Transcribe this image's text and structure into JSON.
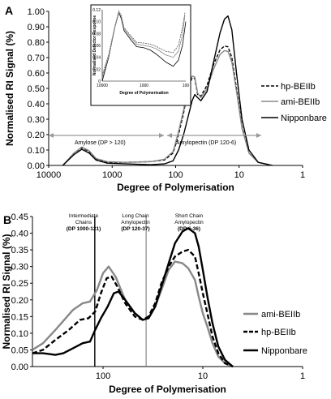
{
  "chart_data": [
    {
      "panel": "A",
      "type": "line",
      "xlabel": "Degree of Polymerisation",
      "ylabel": "Normalised RI Signal (%)",
      "x_scale": "log",
      "x_reversed": true,
      "x_ticks": [
        "10000",
        "1000",
        "100",
        "10",
        "1"
      ],
      "y_ticks": [
        "0.00",
        "0.10",
        "0.20",
        "0.30",
        "0.40",
        "0.50",
        "0.60",
        "0.70",
        "0.80",
        "0.90",
        "1.00"
      ],
      "xlim": [
        10000,
        1
      ],
      "ylim": [
        0,
        1.0
      ],
      "legend_position": "right",
      "series": [
        {
          "name": "hp-BEIIb",
          "color": "#000000",
          "dash": "dashed",
          "points": [
            [
              6000,
              0.0
            ],
            [
              4000,
              0.08
            ],
            [
              3000,
              0.115
            ],
            [
              2300,
              0.09
            ],
            [
              1800,
              0.04
            ],
            [
              1200,
              0.02
            ],
            [
              600,
              0.02
            ],
            [
              250,
              0.025
            ],
            [
              150,
              0.035
            ],
            [
              110,
              0.08
            ],
            [
              90,
              0.2
            ],
            [
              75,
              0.34
            ],
            [
              65,
              0.48
            ],
            [
              55,
              0.57
            ],
            [
              50,
              0.565
            ],
            [
              45,
              0.46
            ],
            [
              40,
              0.45
            ],
            [
              32,
              0.52
            ],
            [
              25,
              0.66
            ],
            [
              20,
              0.75
            ],
            [
              17,
              0.775
            ],
            [
              15,
              0.77
            ],
            [
              13,
              0.7
            ],
            [
              11,
              0.5
            ],
            [
              9,
              0.25
            ],
            [
              7,
              0.08
            ],
            [
              5,
              0.02
            ],
            [
              3,
              0.0
            ]
          ]
        },
        {
          "name": "ami-BEIIb",
          "color": "#888888",
          "dash": "solid",
          "points": [
            [
              6000,
              0.0
            ],
            [
              4000,
              0.08
            ],
            [
              3000,
              0.12
            ],
            [
              2300,
              0.095
            ],
            [
              1800,
              0.045
            ],
            [
              1200,
              0.025
            ],
            [
              600,
              0.02
            ],
            [
              250,
              0.025
            ],
            [
              150,
              0.04
            ],
            [
              110,
              0.09
            ],
            [
              90,
              0.22
            ],
            [
              75,
              0.36
            ],
            [
              65,
              0.5
            ],
            [
              55,
              0.58
            ],
            [
              50,
              0.575
            ],
            [
              45,
              0.47
            ],
            [
              40,
              0.44
            ],
            [
              32,
              0.5
            ],
            [
              25,
              0.63
            ],
            [
              20,
              0.72
            ],
            [
              17,
              0.745
            ],
            [
              15,
              0.74
            ],
            [
              13,
              0.67
            ],
            [
              11,
              0.48
            ],
            [
              9,
              0.24
            ],
            [
              7,
              0.08
            ],
            [
              5,
              0.02
            ],
            [
              3,
              0.0
            ]
          ]
        },
        {
          "name": "Nipponbare",
          "color": "#000000",
          "dash": "solid",
          "points": [
            [
              6000,
              0.0
            ],
            [
              4000,
              0.07
            ],
            [
              3000,
              0.105
            ],
            [
              2300,
              0.08
            ],
            [
              1800,
              0.035
            ],
            [
              1200,
              0.015
            ],
            [
              600,
              0.01
            ],
            [
              250,
              0.005
            ],
            [
              150,
              0.01
            ],
            [
              110,
              0.03
            ],
            [
              90,
              0.1
            ],
            [
              75,
              0.2
            ],
            [
              65,
              0.3
            ],
            [
              55,
              0.42
            ],
            [
              50,
              0.46
            ],
            [
              45,
              0.44
            ],
            [
              40,
              0.42
            ],
            [
              32,
              0.48
            ],
            [
              25,
              0.68
            ],
            [
              20,
              0.86
            ],
            [
              17,
              0.95
            ],
            [
              15,
              0.97
            ],
            [
              13,
              0.88
            ],
            [
              11,
              0.6
            ],
            [
              9,
              0.3
            ],
            [
              7,
              0.1
            ],
            [
              5,
              0.02
            ],
            [
              3,
              0.0
            ]
          ]
        }
      ],
      "annotations": [
        "Amylose (DP > 120)",
        "Amylopectin (DP 120-6)"
      ],
      "inset": {
        "xlabel": "Degree of Polymerisation",
        "ylabel": "Normalised Detector Response",
        "x_ticks": [
          "10000",
          "1000",
          "100"
        ],
        "y_ticks": [
          "0",
          "0.02",
          "0.04",
          "0.06",
          "0.08",
          "0.10",
          "0.12"
        ],
        "xlim": [
          10000,
          100
        ],
        "ylim": [
          0,
          0.12
        ],
        "series": [
          {
            "color": "#000000",
            "dash": "solid",
            "points": [
              [
                10000,
                0.0
              ],
              [
                7000,
                0.04
              ],
              [
                5000,
                0.09
              ],
              [
                4000,
                0.115
              ],
              [
                3500,
                0.105
              ],
              [
                3000,
                0.085
              ],
              [
                2000,
                0.068
              ],
              [
                1500,
                0.058
              ],
              [
                1000,
                0.056
              ],
              [
                700,
                0.052
              ],
              [
                500,
                0.045
              ],
              [
                300,
                0.032
              ],
              [
                200,
                0.025
              ],
              [
                150,
                0.035
              ],
              [
                120,
                0.06
              ],
              [
                100,
                0.1
              ]
            ]
          },
          {
            "color": "#555555",
            "dash": "dashed",
            "points": [
              [
                10000,
                0.01
              ],
              [
                7000,
                0.045
              ],
              [
                5000,
                0.092
              ],
              [
                4000,
                0.118
              ],
              [
                3500,
                0.11
              ],
              [
                3000,
                0.09
              ],
              [
                2000,
                0.075
              ],
              [
                1500,
                0.065
              ],
              [
                1000,
                0.064
              ],
              [
                700,
                0.062
              ],
              [
                500,
                0.058
              ],
              [
                300,
                0.05
              ],
              [
                200,
                0.048
              ],
              [
                150,
                0.06
              ],
              [
                120,
                0.09
              ],
              [
                105,
                0.115
              ]
            ]
          },
          {
            "color": "#888888",
            "dash": "solid",
            "points": [
              [
                10000,
                0.005
              ],
              [
                7000,
                0.042
              ],
              [
                5000,
                0.09
              ],
              [
                4000,
                0.116
              ],
              [
                3500,
                0.108
              ],
              [
                3000,
                0.088
              ],
              [
                2000,
                0.072
              ],
              [
                1500,
                0.062
              ],
              [
                1000,
                0.06
              ],
              [
                700,
                0.058
              ],
              [
                500,
                0.054
              ],
              [
                300,
                0.044
              ],
              [
                200,
                0.04
              ],
              [
                150,
                0.05
              ],
              [
                120,
                0.078
              ],
              [
                105,
                0.11
              ]
            ]
          }
        ]
      }
    },
    {
      "panel": "B",
      "type": "line",
      "xlabel": "Degree of Polymerisation",
      "ylabel": "Normalised RI Signal (%)",
      "x_scale": "log",
      "x_reversed": true,
      "x_ticks": [
        "100",
        "10",
        "1"
      ],
      "y_ticks": [
        "0.00",
        "0.05",
        "0.10",
        "0.15",
        "0.20",
        "0.25",
        "0.30",
        "0.35",
        "0.40",
        "0.45"
      ],
      "xlim": [
        510,
        1
      ],
      "ylim": [
        0,
        0.45
      ],
      "legend_position": "right",
      "vertical_lines": [
        121,
        37
      ],
      "region_labels": [
        [
          "Intermediate",
          "Chains",
          "(DP 1000-121)"
        ],
        [
          "Long Chain",
          "Amylopectin",
          "(DP 120-37)"
        ],
        [
          "Short Chain",
          "Amylopectin",
          "(DP 6-36)"
        ]
      ],
      "series": [
        {
          "name": "ami-BEIIb",
          "color": "#888888",
          "dash": "solid",
          "points": [
            [
              510,
              0.05
            ],
            [
              400,
              0.07
            ],
            [
              300,
              0.11
            ],
            [
              200,
              0.17
            ],
            [
              160,
              0.19
            ],
            [
              135,
              0.195
            ],
            [
              115,
              0.23
            ],
            [
              100,
              0.28
            ],
            [
              88,
              0.3
            ],
            [
              75,
              0.27
            ],
            [
              60,
              0.2
            ],
            [
              48,
              0.16
            ],
            [
              40,
              0.14
            ],
            [
              35,
              0.145
            ],
            [
              30,
              0.18
            ],
            [
              26,
              0.23
            ],
            [
              22,
              0.29
            ],
            [
              19,
              0.315
            ],
            [
              16,
              0.31
            ],
            [
              14,
              0.295
            ],
            [
              12,
              0.26
            ],
            [
              11,
              0.21
            ],
            [
              10,
              0.16
            ],
            [
              9,
              0.12
            ],
            [
              8,
              0.07
            ],
            [
              7,
              0.03
            ],
            [
              6,
              0.01
            ],
            [
              5,
              0.0
            ]
          ]
        },
        {
          "name": "hp-BEIIb",
          "color": "#000000",
          "dash": "dashed",
          "points": [
            [
              510,
              0.04
            ],
            [
              400,
              0.05
            ],
            [
              300,
              0.08
            ],
            [
              220,
              0.11
            ],
            [
              170,
              0.14
            ],
            [
              140,
              0.145
            ],
            [
              120,
              0.165
            ],
            [
              105,
              0.22
            ],
            [
              92,
              0.265
            ],
            [
              82,
              0.27
            ],
            [
              72,
              0.24
            ],
            [
              60,
              0.19
            ],
            [
              48,
              0.15
            ],
            [
              40,
              0.14
            ],
            [
              35,
              0.15
            ],
            [
              30,
              0.19
            ],
            [
              26,
              0.25
            ],
            [
              22,
              0.3
            ],
            [
              19,
              0.33
            ],
            [
              16,
              0.345
            ],
            [
              14,
              0.35
            ],
            [
              12,
              0.33
            ],
            [
              11,
              0.28
            ],
            [
              10,
              0.22
            ],
            [
              9,
              0.16
            ],
            [
              8,
              0.09
            ],
            [
              7,
              0.04
            ],
            [
              6,
              0.01
            ],
            [
              5,
              0.0
            ]
          ]
        },
        {
          "name": "Nipponbare",
          "color": "#000000",
          "dash": "solid",
          "points": [
            [
              510,
              0.04
            ],
            [
              400,
              0.04
            ],
            [
              300,
              0.035
            ],
            [
              250,
              0.04
            ],
            [
              200,
              0.055
            ],
            [
              160,
              0.07
            ],
            [
              135,
              0.075
            ],
            [
              120,
              0.11
            ],
            [
              105,
              0.145
            ],
            [
              90,
              0.18
            ],
            [
              78,
              0.22
            ],
            [
              70,
              0.225
            ],
            [
              60,
              0.2
            ],
            [
              48,
              0.16
            ],
            [
              40,
              0.14
            ],
            [
              35,
              0.145
            ],
            [
              30,
              0.18
            ],
            [
              26,
              0.24
            ],
            [
              22,
              0.31
            ],
            [
              19,
              0.37
            ],
            [
              16,
              0.405
            ],
            [
              14,
              0.415
            ],
            [
              12,
              0.4
            ],
            [
              11,
              0.36
            ],
            [
              10,
              0.29
            ],
            [
              9,
              0.21
            ],
            [
              8,
              0.13
            ],
            [
              7,
              0.06
            ],
            [
              6,
              0.02
            ],
            [
              5,
              0.0
            ]
          ]
        }
      ]
    }
  ]
}
